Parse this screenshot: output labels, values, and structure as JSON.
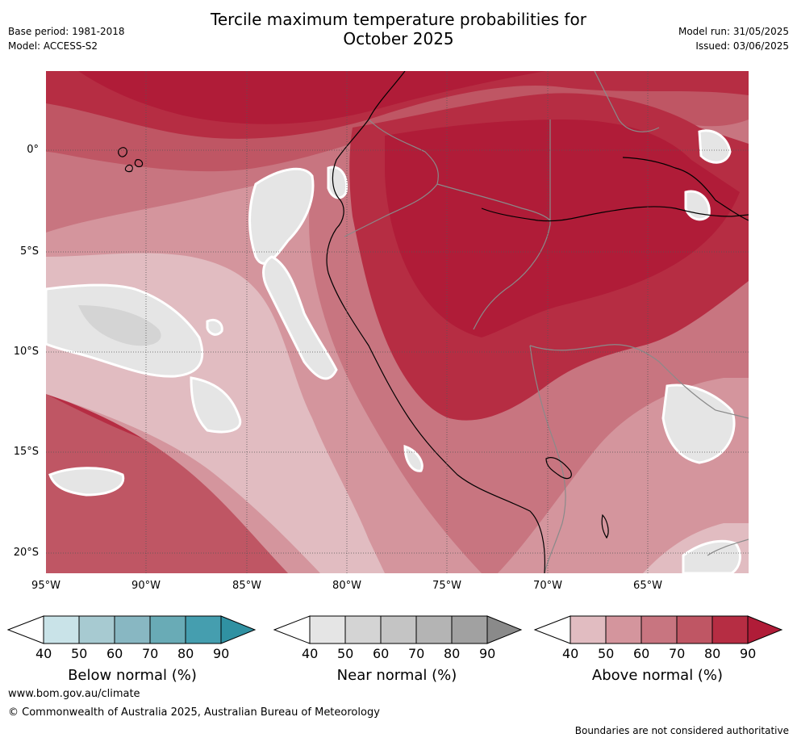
{
  "header": {
    "title_line1": "Tercile maximum temperature probabilities for",
    "title_line2": "October 2025",
    "base_period": "Base period: 1981-2018",
    "model": "Model: ACCESS-S2",
    "model_run": "Model run: 31/05/2025",
    "issued": "Issued: 03/06/2025"
  },
  "axes": {
    "lat_labels": [
      "0°",
      "5°S",
      "10°S",
      "15°S",
      "20°S"
    ],
    "lon_labels": [
      "95°W",
      "90°W",
      "85°W",
      "80°W",
      "75°W",
      "70°W",
      "65°W"
    ]
  },
  "legends": [
    {
      "name": "Below normal (%)",
      "ticks": [
        "40",
        "50",
        "60",
        "70",
        "80",
        "90"
      ],
      "colors": [
        "#ffffff",
        "#c9e3e8",
        "#a7cad1",
        "#88b7c2",
        "#69abb6",
        "#459eaf",
        "#3091a2"
      ]
    },
    {
      "name": "Near normal (%)",
      "ticks": [
        "40",
        "50",
        "60",
        "70",
        "80",
        "90"
      ],
      "colors": [
        "#ffffff",
        "#e5e5e5",
        "#d4d4d4",
        "#c4c4c4",
        "#b4b4b4",
        "#a1a1a1",
        "#8a8a8a"
      ]
    },
    {
      "name": "Above normal (%)",
      "ticks": [
        "40",
        "50",
        "60",
        "70",
        "80",
        "90"
      ],
      "colors": [
        "#ffffff",
        "#e1bcc1",
        "#d4959d",
        "#c87580",
        "#bf5664",
        "#b62d43",
        "#b01c38"
      ]
    }
  ],
  "footer": {
    "website": "www.bom.gov.au/climate",
    "copyright": "© Commonwealth of Australia 2025, Australian Bureau of Meteorology",
    "disclaimer": "Boundaries are not considered authoritative"
  }
}
